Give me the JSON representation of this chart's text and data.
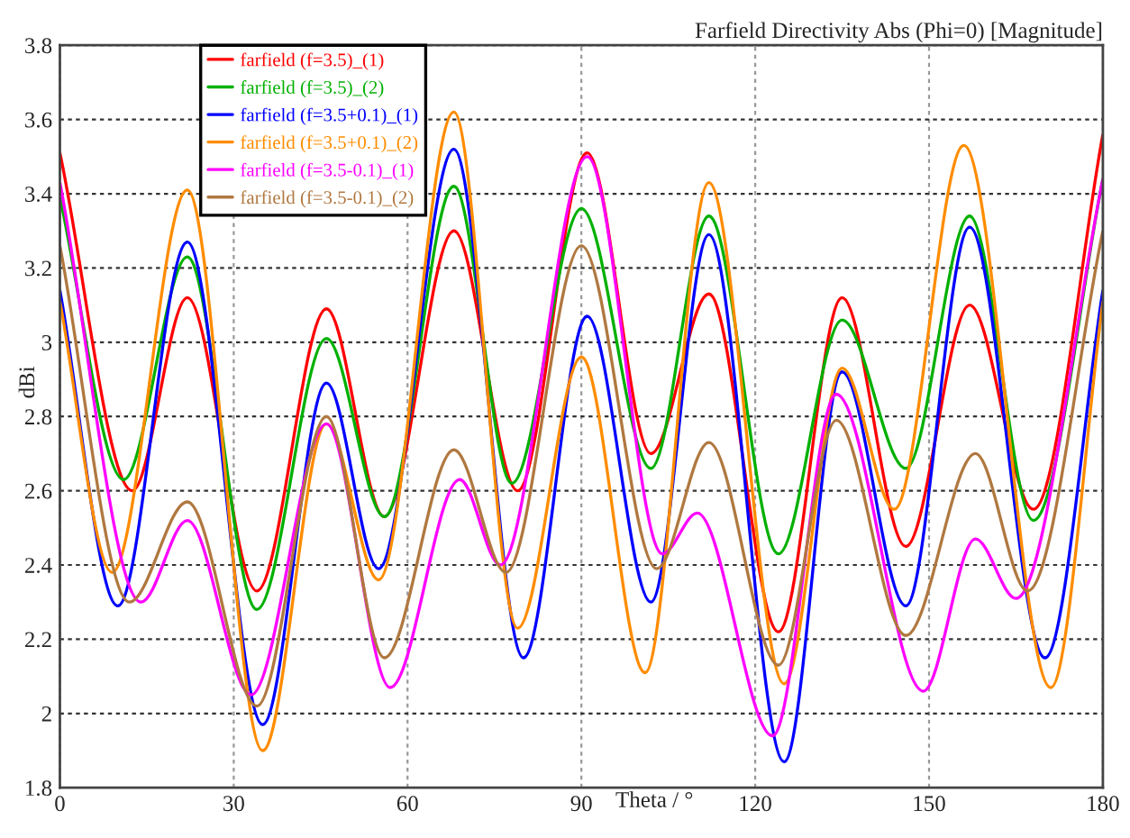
{
  "chart_data": {
    "type": "line",
    "title": "Farfield Directivity Abs (Phi=0) [Magnitude]",
    "xlabel": "Theta / °",
    "ylabel": "dBi",
    "xlim": [
      0,
      180
    ],
    "xticks": [
      0,
      30,
      60,
      90,
      120,
      150,
      180
    ],
    "ylim": [
      1.8,
      3.8
    ],
    "yticks": [
      1.8,
      2,
      2.2,
      2.4,
      2.6,
      2.8,
      3,
      3.2,
      3.4,
      3.6,
      3.8
    ],
    "grid": true,
    "legend": "top left",
    "line_style": "solid",
    "marker": "none",
    "series": [
      {
        "name": "farfield (f=3.5)_(1)",
        "color": "#ff0000",
        "x": [
          0,
          12.5,
          22,
          34,
          46,
          56,
          68,
          79,
          91,
          102,
          112,
          124,
          135,
          146,
          157,
          168,
          180
        ],
        "values": [
          3.51,
          2.6,
          3.12,
          2.33,
          3.09,
          2.53,
          3.3,
          2.6,
          3.51,
          2.7,
          3.13,
          2.22,
          3.12,
          2.45,
          3.1,
          2.55,
          3.56
        ]
      },
      {
        "name": "farfield (f=3.5)_(2)",
        "color": "#00b000",
        "x": [
          0,
          11,
          22,
          34,
          46,
          56,
          68,
          78,
          90,
          102,
          112,
          124,
          135,
          146,
          157,
          168,
          180
        ],
        "values": [
          3.39,
          2.63,
          3.23,
          2.28,
          3.01,
          2.53,
          3.42,
          2.62,
          3.36,
          2.66,
          3.34,
          2.43,
          3.06,
          2.66,
          3.34,
          2.52,
          3.44
        ]
      },
      {
        "name": "farfield (f=3.5+0.1)_(1)",
        "color": "#0000ff",
        "x": [
          0,
          10,
          22,
          35,
          46,
          55,
          68,
          80,
          91,
          102,
          112,
          125,
          135,
          146,
          157,
          170,
          180
        ],
        "values": [
          3.14,
          2.29,
          3.27,
          1.97,
          2.89,
          2.39,
          3.52,
          2.15,
          3.07,
          2.3,
          3.29,
          1.87,
          2.92,
          2.29,
          3.31,
          2.15,
          3.14
        ]
      },
      {
        "name": "farfield (f=3.5+0.1)_(2)",
        "color": "#ff8c00",
        "x": [
          0,
          9,
          22,
          35,
          46,
          55,
          68,
          79,
          90,
          101,
          112,
          125,
          135,
          144,
          156,
          171,
          180
        ],
        "values": [
          3.11,
          2.38,
          3.41,
          1.9,
          2.78,
          2.36,
          3.62,
          2.23,
          2.96,
          2.11,
          3.43,
          2.08,
          2.93,
          2.55,
          3.53,
          2.07,
          3.11
        ]
      },
      {
        "name": "farfield (f=3.5-0.1)_(1)",
        "color": "#ff00ff",
        "x": [
          0,
          14,
          22,
          33,
          46,
          57,
          69,
          76,
          91,
          104,
          110,
          123,
          134,
          149,
          158,
          165,
          180
        ],
        "values": [
          3.43,
          2.3,
          2.52,
          2.05,
          2.78,
          2.07,
          2.63,
          2.4,
          3.5,
          2.43,
          2.54,
          1.94,
          2.86,
          2.06,
          2.47,
          2.31,
          3.44
        ]
      },
      {
        "name": "farfield (f=3.5-0.1)_(2)",
        "color": "#b07840",
        "x": [
          0,
          12,
          22,
          34,
          46,
          56,
          68,
          77,
          90,
          103,
          112,
          124,
          134,
          146,
          158,
          167,
          180
        ],
        "values": [
          3.26,
          2.3,
          2.57,
          2.02,
          2.8,
          2.15,
          2.71,
          2.38,
          3.26,
          2.39,
          2.73,
          2.13,
          2.79,
          2.21,
          2.7,
          2.33,
          3.3
        ]
      }
    ]
  }
}
